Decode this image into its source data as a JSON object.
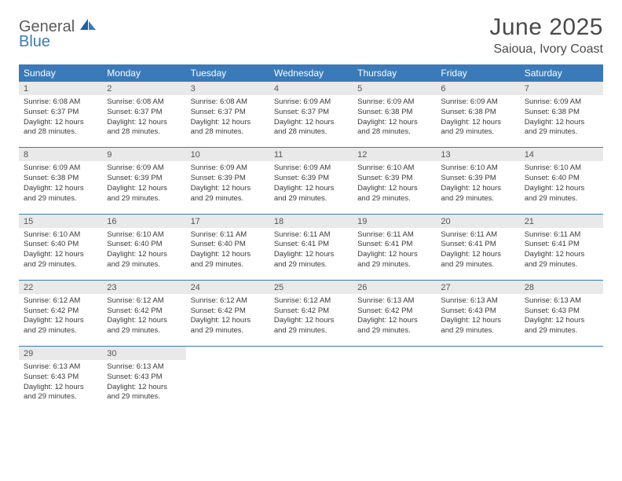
{
  "brand": {
    "word1": "General",
    "word2": "Blue"
  },
  "title": "June 2025",
  "location": "Saioua, Ivory Coast",
  "colors": {
    "header_bg": "#3a7ab8",
    "header_text": "#ffffff",
    "daynum_bg": "#e9e9e9",
    "divider": "#3a7ab8",
    "body_text": "#3a3a3a",
    "title_text": "#4a4a4a"
  },
  "day_names": [
    "Sunday",
    "Monday",
    "Tuesday",
    "Wednesday",
    "Thursday",
    "Friday",
    "Saturday"
  ],
  "weeks": [
    {
      "nums": [
        "1",
        "2",
        "3",
        "4",
        "5",
        "6",
        "7"
      ],
      "cells": [
        {
          "sunrise": "Sunrise: 6:08 AM",
          "sunset": "Sunset: 6:37 PM",
          "day1": "Daylight: 12 hours",
          "day2": "and 28 minutes."
        },
        {
          "sunrise": "Sunrise: 6:08 AM",
          "sunset": "Sunset: 6:37 PM",
          "day1": "Daylight: 12 hours",
          "day2": "and 28 minutes."
        },
        {
          "sunrise": "Sunrise: 6:08 AM",
          "sunset": "Sunset: 6:37 PM",
          "day1": "Daylight: 12 hours",
          "day2": "and 28 minutes."
        },
        {
          "sunrise": "Sunrise: 6:09 AM",
          "sunset": "Sunset: 6:37 PM",
          "day1": "Daylight: 12 hours",
          "day2": "and 28 minutes."
        },
        {
          "sunrise": "Sunrise: 6:09 AM",
          "sunset": "Sunset: 6:38 PM",
          "day1": "Daylight: 12 hours",
          "day2": "and 28 minutes."
        },
        {
          "sunrise": "Sunrise: 6:09 AM",
          "sunset": "Sunset: 6:38 PM",
          "day1": "Daylight: 12 hours",
          "day2": "and 29 minutes."
        },
        {
          "sunrise": "Sunrise: 6:09 AM",
          "sunset": "Sunset: 6:38 PM",
          "day1": "Daylight: 12 hours",
          "day2": "and 29 minutes."
        }
      ]
    },
    {
      "nums": [
        "8",
        "9",
        "10",
        "11",
        "12",
        "13",
        "14"
      ],
      "cells": [
        {
          "sunrise": "Sunrise: 6:09 AM",
          "sunset": "Sunset: 6:38 PM",
          "day1": "Daylight: 12 hours",
          "day2": "and 29 minutes."
        },
        {
          "sunrise": "Sunrise: 6:09 AM",
          "sunset": "Sunset: 6:39 PM",
          "day1": "Daylight: 12 hours",
          "day2": "and 29 minutes."
        },
        {
          "sunrise": "Sunrise: 6:09 AM",
          "sunset": "Sunset: 6:39 PM",
          "day1": "Daylight: 12 hours",
          "day2": "and 29 minutes."
        },
        {
          "sunrise": "Sunrise: 6:09 AM",
          "sunset": "Sunset: 6:39 PM",
          "day1": "Daylight: 12 hours",
          "day2": "and 29 minutes."
        },
        {
          "sunrise": "Sunrise: 6:10 AM",
          "sunset": "Sunset: 6:39 PM",
          "day1": "Daylight: 12 hours",
          "day2": "and 29 minutes."
        },
        {
          "sunrise": "Sunrise: 6:10 AM",
          "sunset": "Sunset: 6:39 PM",
          "day1": "Daylight: 12 hours",
          "day2": "and 29 minutes."
        },
        {
          "sunrise": "Sunrise: 6:10 AM",
          "sunset": "Sunset: 6:40 PM",
          "day1": "Daylight: 12 hours",
          "day2": "and 29 minutes."
        }
      ]
    },
    {
      "nums": [
        "15",
        "16",
        "17",
        "18",
        "19",
        "20",
        "21"
      ],
      "cells": [
        {
          "sunrise": "Sunrise: 6:10 AM",
          "sunset": "Sunset: 6:40 PM",
          "day1": "Daylight: 12 hours",
          "day2": "and 29 minutes."
        },
        {
          "sunrise": "Sunrise: 6:10 AM",
          "sunset": "Sunset: 6:40 PM",
          "day1": "Daylight: 12 hours",
          "day2": "and 29 minutes."
        },
        {
          "sunrise": "Sunrise: 6:11 AM",
          "sunset": "Sunset: 6:40 PM",
          "day1": "Daylight: 12 hours",
          "day2": "and 29 minutes."
        },
        {
          "sunrise": "Sunrise: 6:11 AM",
          "sunset": "Sunset: 6:41 PM",
          "day1": "Daylight: 12 hours",
          "day2": "and 29 minutes."
        },
        {
          "sunrise": "Sunrise: 6:11 AM",
          "sunset": "Sunset: 6:41 PM",
          "day1": "Daylight: 12 hours",
          "day2": "and 29 minutes."
        },
        {
          "sunrise": "Sunrise: 6:11 AM",
          "sunset": "Sunset: 6:41 PM",
          "day1": "Daylight: 12 hours",
          "day2": "and 29 minutes."
        },
        {
          "sunrise": "Sunrise: 6:11 AM",
          "sunset": "Sunset: 6:41 PM",
          "day1": "Daylight: 12 hours",
          "day2": "and 29 minutes."
        }
      ]
    },
    {
      "nums": [
        "22",
        "23",
        "24",
        "25",
        "26",
        "27",
        "28"
      ],
      "cells": [
        {
          "sunrise": "Sunrise: 6:12 AM",
          "sunset": "Sunset: 6:42 PM",
          "day1": "Daylight: 12 hours",
          "day2": "and 29 minutes."
        },
        {
          "sunrise": "Sunrise: 6:12 AM",
          "sunset": "Sunset: 6:42 PM",
          "day1": "Daylight: 12 hours",
          "day2": "and 29 minutes."
        },
        {
          "sunrise": "Sunrise: 6:12 AM",
          "sunset": "Sunset: 6:42 PM",
          "day1": "Daylight: 12 hours",
          "day2": "and 29 minutes."
        },
        {
          "sunrise": "Sunrise: 6:12 AM",
          "sunset": "Sunset: 6:42 PM",
          "day1": "Daylight: 12 hours",
          "day2": "and 29 minutes."
        },
        {
          "sunrise": "Sunrise: 6:13 AM",
          "sunset": "Sunset: 6:42 PM",
          "day1": "Daylight: 12 hours",
          "day2": "and 29 minutes."
        },
        {
          "sunrise": "Sunrise: 6:13 AM",
          "sunset": "Sunset: 6:43 PM",
          "day1": "Daylight: 12 hours",
          "day2": "and 29 minutes."
        },
        {
          "sunrise": "Sunrise: 6:13 AM",
          "sunset": "Sunset: 6:43 PM",
          "day1": "Daylight: 12 hours",
          "day2": "and 29 minutes."
        }
      ]
    },
    {
      "nums": [
        "29",
        "30",
        "",
        "",
        "",
        "",
        ""
      ],
      "cells": [
        {
          "sunrise": "Sunrise: 6:13 AM",
          "sunset": "Sunset: 6:43 PM",
          "day1": "Daylight: 12 hours",
          "day2": "and 29 minutes."
        },
        {
          "sunrise": "Sunrise: 6:13 AM",
          "sunset": "Sunset: 6:43 PM",
          "day1": "Daylight: 12 hours",
          "day2": "and 29 minutes."
        },
        null,
        null,
        null,
        null,
        null
      ]
    }
  ]
}
